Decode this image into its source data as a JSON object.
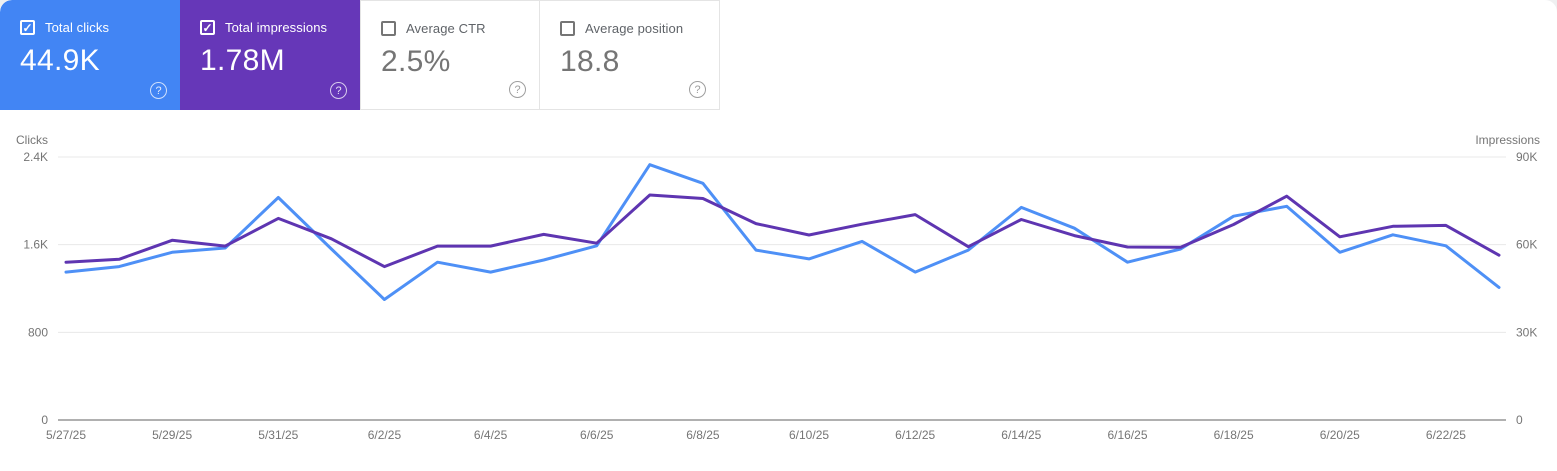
{
  "page": {
    "bg": "#eff0f1",
    "panel_bg": "#ffffff"
  },
  "icons": {
    "check": "✓",
    "help": "?"
  },
  "cards": [
    {
      "label": "Total clicks",
      "value": "44.9K",
      "checked": true,
      "bg": "#4285f4",
      "fg": "#ffffff"
    },
    {
      "label": "Total impressions",
      "value": "1.78M",
      "checked": true,
      "bg": "#6637b8",
      "fg": "#ffffff"
    },
    {
      "label": "Average CTR",
      "value": "2.5%",
      "checked": false
    },
    {
      "label": "Average position",
      "value": "18.8",
      "checked": false
    }
  ],
  "chart_data": {
    "type": "line",
    "x": [
      "5/27/25",
      "5/28/25",
      "5/29/25",
      "5/30/25",
      "5/31/25",
      "6/1/25",
      "6/2/25",
      "6/3/25",
      "6/4/25",
      "6/5/25",
      "6/6/25",
      "6/7/25",
      "6/8/25",
      "6/9/25",
      "6/10/25",
      "6/11/25",
      "6/12/25",
      "6/13/25",
      "6/14/25",
      "6/15/25",
      "6/16/25",
      "6/17/25",
      "6/18/25",
      "6/19/25",
      "6/20/25",
      "6/21/25",
      "6/22/25",
      "6/23/25"
    ],
    "x_tick_labels": [
      "5/27/25",
      "5/29/25",
      "5/31/25",
      "6/2/25",
      "6/4/25",
      "6/6/25",
      "6/8/25",
      "6/10/25",
      "6/12/25",
      "6/14/25",
      "6/16/25",
      "6/18/25",
      "6/20/25",
      "6/22/25"
    ],
    "series": [
      {
        "name": "Clicks",
        "axis": "left",
        "color": "#4e90f6",
        "values": [
          1350,
          1400,
          1530,
          1570,
          2030,
          1560,
          1100,
          1440,
          1350,
          1460,
          1590,
          2330,
          2160,
          1550,
          1470,
          1630,
          1350,
          1550,
          1940,
          1750,
          1440,
          1560,
          1860,
          1950,
          1530,
          1690,
          1590,
          1210
        ]
      },
      {
        "name": "Impressions",
        "axis": "right",
        "color": "#5e35b1",
        "values": [
          54000,
          55000,
          61500,
          59500,
          69000,
          62000,
          52500,
          59500,
          59500,
          63500,
          60500,
          77000,
          75800,
          67200,
          63300,
          67000,
          70300,
          59300,
          68600,
          63100,
          59200,
          59100,
          66900,
          76600,
          62700,
          66300,
          66600,
          56400
        ]
      }
    ],
    "left_axis": {
      "label": "Clicks",
      "max": 2400,
      "ticks": [
        {
          "value": 0,
          "label": "0"
        },
        {
          "value": 800,
          "label": "800"
        },
        {
          "value": 1600,
          "label": "1.6K"
        },
        {
          "value": 2400,
          "label": "2.4K"
        }
      ]
    },
    "right_axis": {
      "label": "Impressions",
      "max": 90000,
      "ticks": [
        {
          "value": 0,
          "label": "0"
        },
        {
          "value": 30000,
          "label": "30K"
        },
        {
          "value": 60000,
          "label": "60K"
        },
        {
          "value": 90000,
          "label": "90K"
        }
      ]
    },
    "grid": true,
    "legend": "none",
    "grid_color": "#e8e8e8",
    "axis_line_color": "#b0b0b0",
    "tick_text_color": "#757575"
  }
}
